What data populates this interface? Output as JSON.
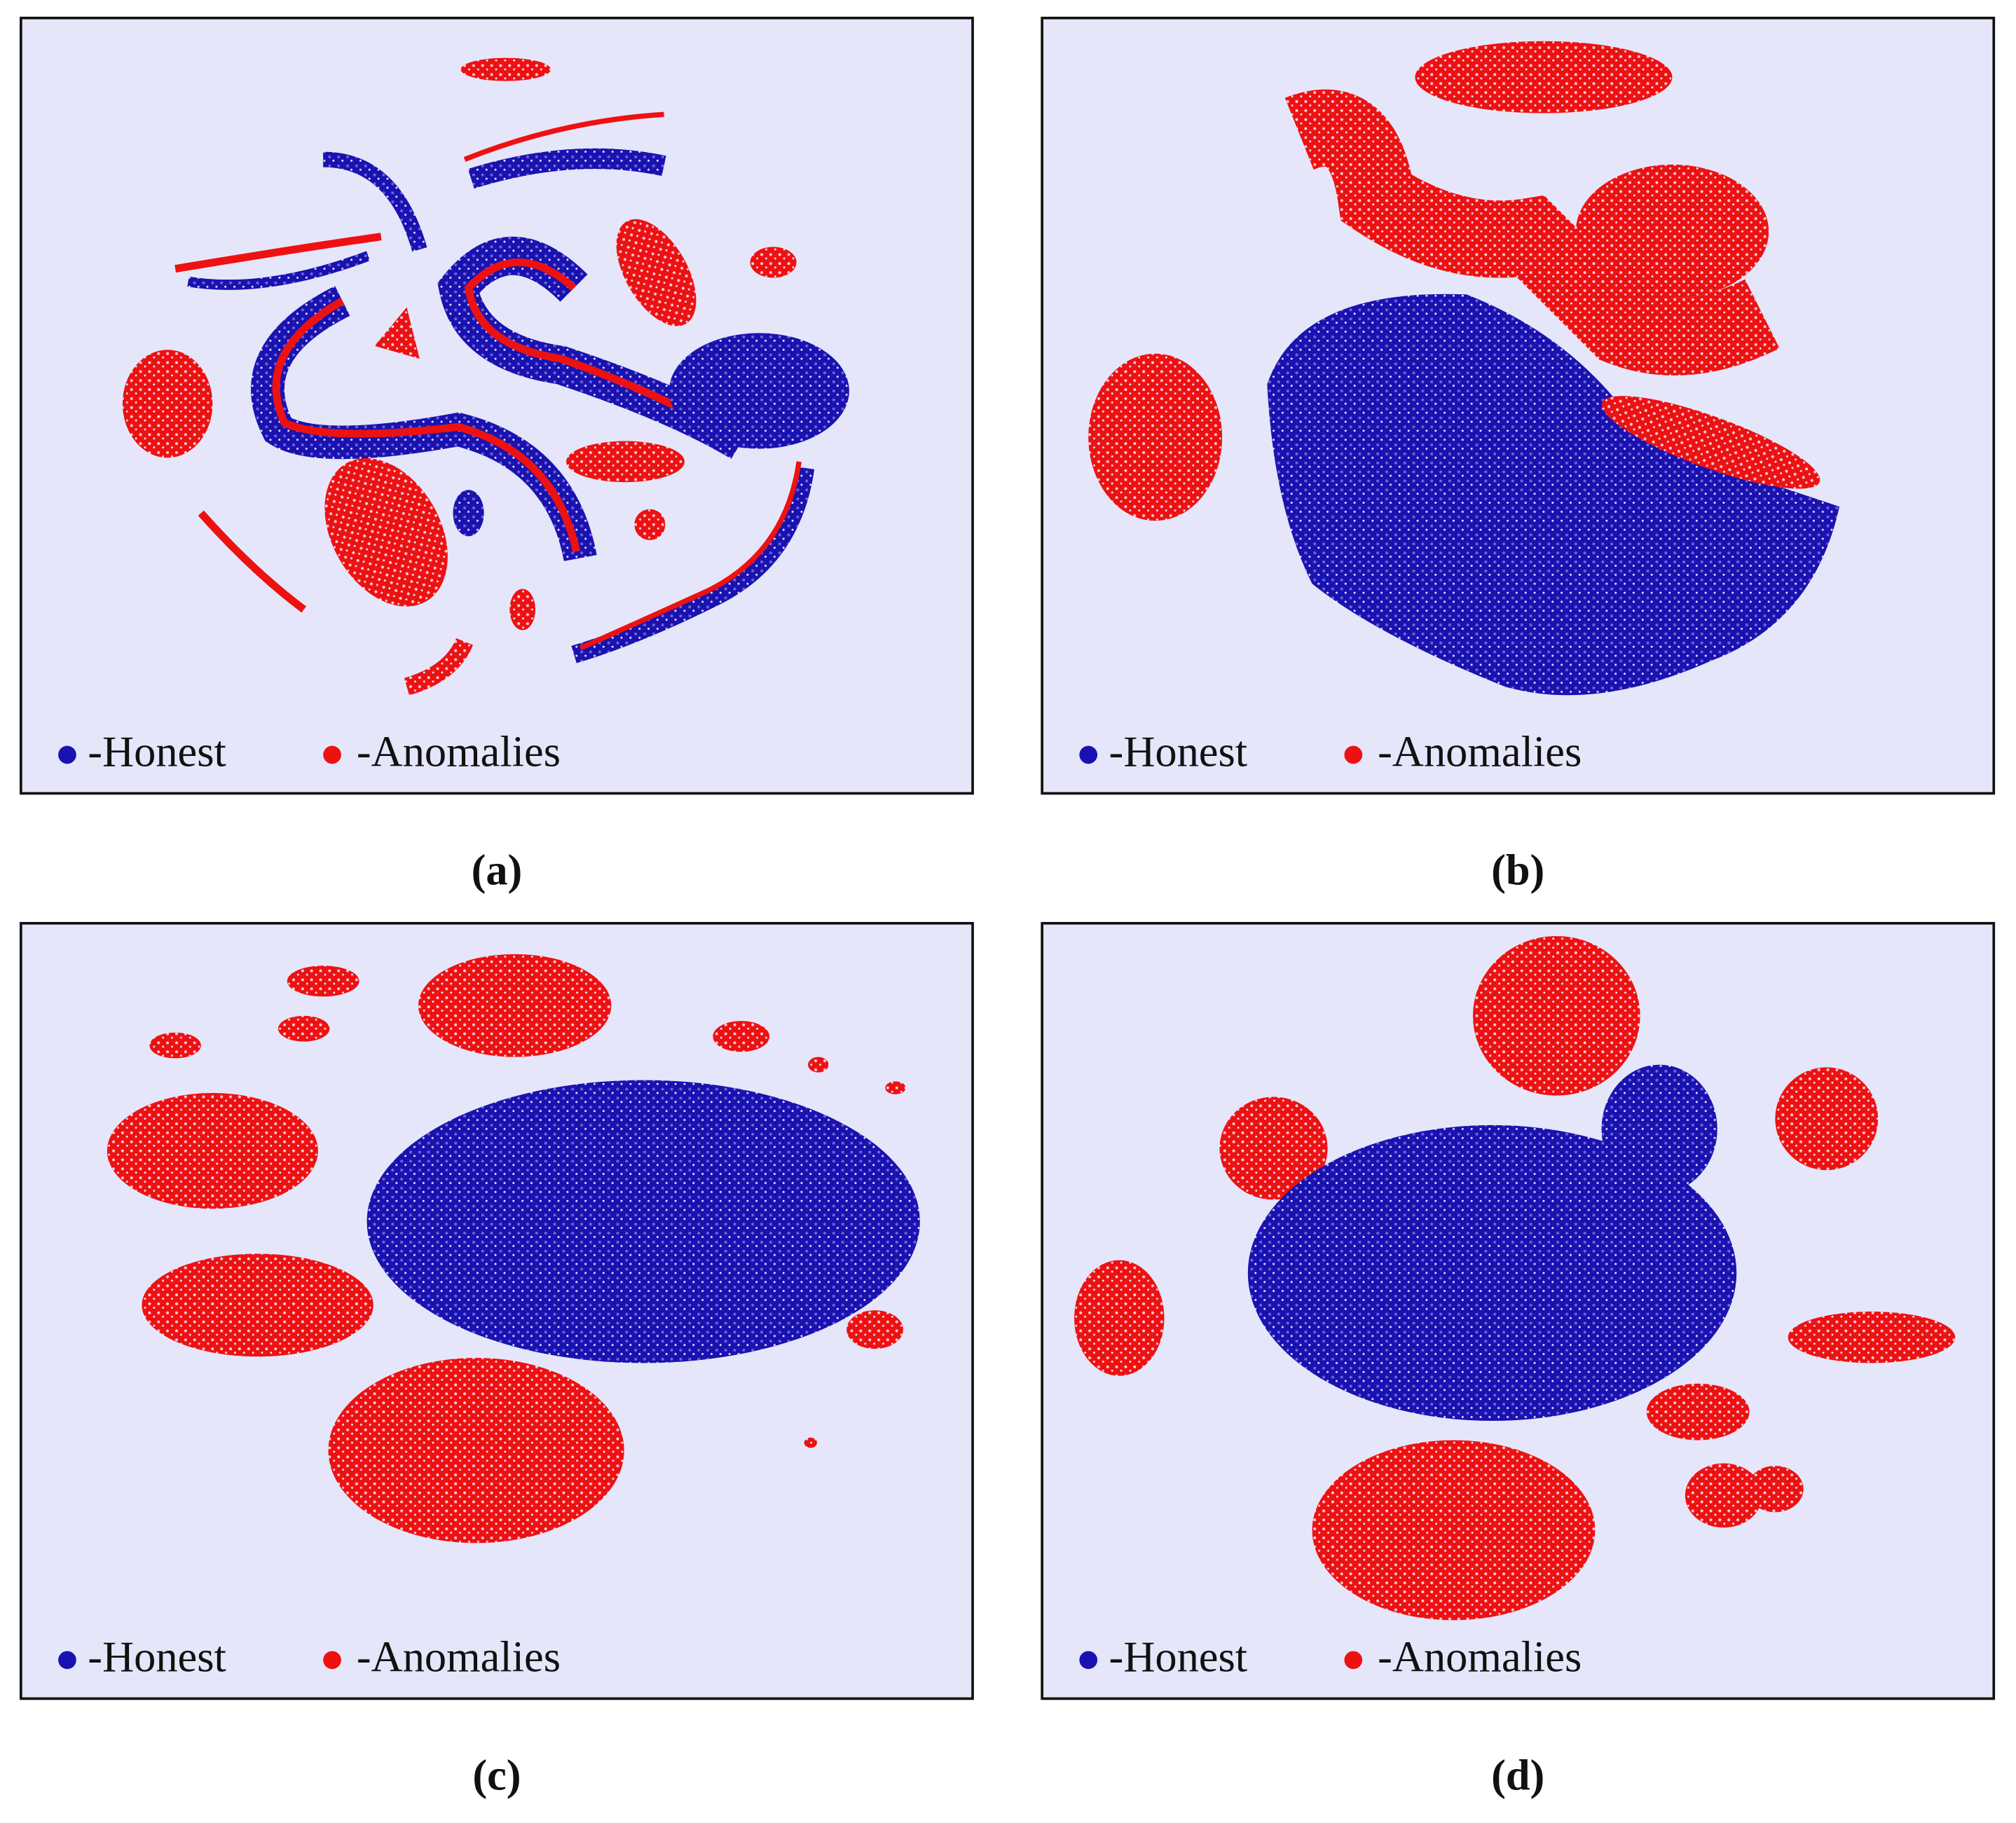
{
  "panels": [
    {
      "caption": "(a)",
      "legend": [
        {
          "label": "-Honest",
          "color": "#1a12b0"
        },
        {
          "label": "-Anomalies",
          "color": "#ee1111"
        }
      ]
    },
    {
      "caption": "(b)",
      "legend": [
        {
          "label": "-Honest",
          "color": "#1a12b0"
        },
        {
          "label": "-Anomalies",
          "color": "#ee1111"
        }
      ]
    },
    {
      "caption": "(c)",
      "legend": [
        {
          "label": "-Honest",
          "color": "#1a12b0"
        },
        {
          "label": "-Anomalies",
          "color": "#ee1111"
        }
      ]
    },
    {
      "caption": "(d)",
      "legend": [
        {
          "label": "-Honest",
          "color": "#1a12b0"
        },
        {
          "label": "-Anomalies",
          "color": "#ee1111"
        }
      ]
    }
  ]
}
